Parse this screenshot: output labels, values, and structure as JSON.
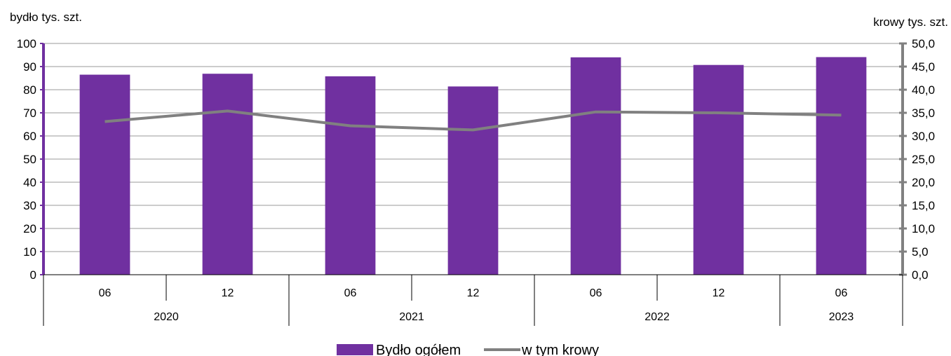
{
  "chart_data": {
    "type": "bar+line",
    "y_left_label": "bydło tys. szt.",
    "y_right_label": "krowy tys. szt.",
    "ylim_left": [
      0,
      100
    ],
    "ylim_right": [
      0,
      50
    ],
    "y_left_ticks": [
      "0",
      "10",
      "20",
      "30",
      "40",
      "50",
      "60",
      "70",
      "80",
      "90",
      "100"
    ],
    "y_right_ticks": [
      "0,0",
      "5,0",
      "10,0",
      "15,0",
      "20,0",
      "25,0",
      "30,0",
      "35,0",
      "40,0",
      "45,0",
      "50,0"
    ],
    "categories": [
      "06",
      "12",
      "06",
      "12",
      "06",
      "12",
      "06"
    ],
    "years": [
      {
        "label": "2020",
        "span": 2
      },
      {
        "label": "2021",
        "span": 2
      },
      {
        "label": "2022",
        "span": 2
      },
      {
        "label": "2023",
        "span": 1
      }
    ],
    "series": [
      {
        "name": "Bydło ogółem",
        "type": "bar",
        "axis": "left",
        "color": "#7030a0",
        "values": [
          86.5,
          86.9,
          85.8,
          81.4,
          94.0,
          90.7,
          94.1
        ]
      },
      {
        "name": "w tym krowy",
        "type": "line",
        "axis": "right",
        "color": "#808080",
        "values": [
          33.1,
          35.4,
          32.2,
          31.3,
          35.2,
          35.0,
          34.5
        ]
      }
    ],
    "grid": true,
    "legend_position": "bottom-center"
  }
}
